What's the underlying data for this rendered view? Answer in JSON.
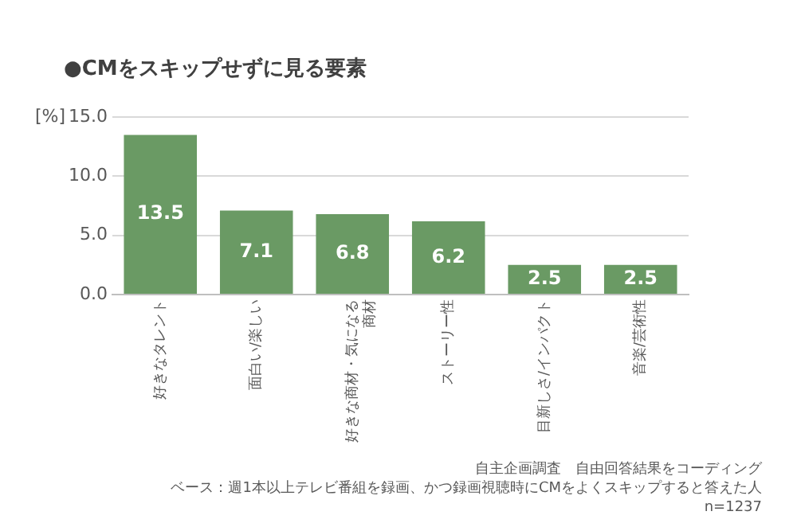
{
  "chart_data": {
    "type": "bar",
    "title": "●CMをスキップせずに見る要素",
    "ylabel": "[%]",
    "categories": [
      "好きなタレント",
      "面白い/楽しい",
      "好きな商材・気になる商材",
      "ストーリー性",
      "目新しさ/インパクト",
      "音楽/芸術性"
    ],
    "values": [
      13.5,
      7.1,
      6.8,
      6.2,
      2.5,
      2.5
    ],
    "color": "#6a9a64",
    "ylim": [
      0,
      15
    ],
    "yticks": [
      {
        "value": 0,
        "label": "0.0"
      },
      {
        "value": 5,
        "label": "5.0"
      },
      {
        "value": 10,
        "label": "10.0"
      },
      {
        "value": 15,
        "label": "15.0"
      }
    ],
    "grid": "y",
    "data_labels": true,
    "annotations": [
      "自主企画調査　自由回答結果をコーディング",
      "ベース：週1本以上テレビ番組を録画、かつ録画視聴時にCMをよくスキップすると答えた人",
      "n=1237"
    ]
  }
}
